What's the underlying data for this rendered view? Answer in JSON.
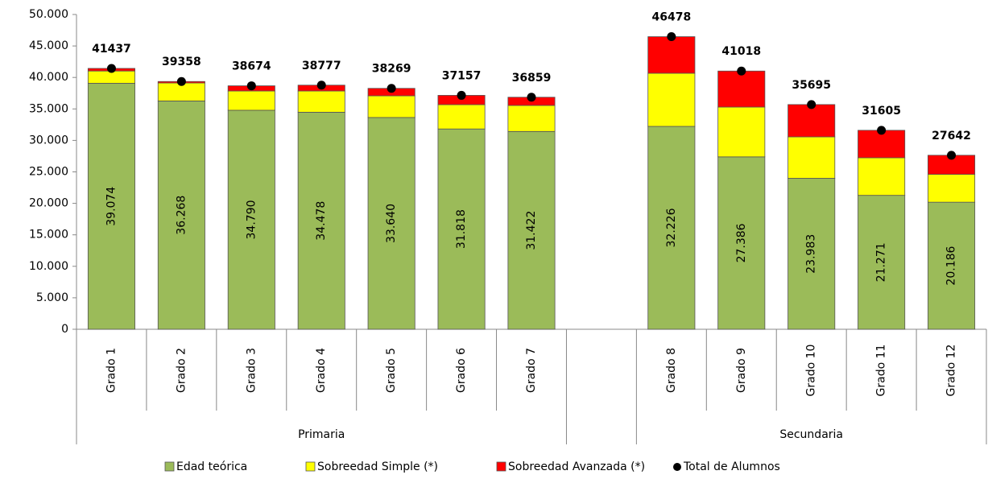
{
  "chart_data": {
    "type": "stacked-bar",
    "categories": [
      "Grado 1",
      "Grado 2",
      "Grado 3",
      "Grado 4",
      "Grado 5",
      "Grado 6",
      "Grado 7",
      null,
      "Grado 8",
      "Grado 9",
      "Grado 10",
      "Grado 11",
      "Grado 12"
    ],
    "groups": [
      {
        "name": "Primaria",
        "span": [
          0,
          6
        ]
      },
      {
        "name": "Secundaria",
        "span": [
          8,
          12
        ]
      }
    ],
    "series": [
      {
        "name": "Edad teórica",
        "color": "#9bbb59",
        "values": [
          39074,
          36268,
          34790,
          34478,
          33640,
          31818,
          31422,
          null,
          32226,
          27386,
          23983,
          21271,
          20186
        ],
        "value_labels": [
          "39.074",
          "36.268",
          "34.790",
          "34.478",
          "33.640",
          "31.818",
          "31.422",
          null,
          "32.226",
          "27.386",
          "23.983",
          "21.271",
          "20.186"
        ]
      },
      {
        "name": "Sobreedad Simple (*)",
        "color": "#ffff00",
        "values": [
          1950,
          2850,
          3060,
          3370,
          3440,
          3860,
          4130,
          null,
          8440,
          7910,
          6580,
          5970,
          4420
        ]
      },
      {
        "name": "Sobreedad Avanzada (*)",
        "color": "#ff0000",
        "values": [
          413,
          240,
          824,
          929,
          1189,
          1479,
          1307,
          null,
          5812,
          5722,
          5132,
          4364,
          3036
        ]
      }
    ],
    "total": {
      "name": "Total de Alumnos",
      "color": "#000000",
      "values": [
        41437,
        39358,
        38674,
        38777,
        38269,
        37157,
        36859,
        null,
        46478,
        41018,
        35695,
        31605,
        27642
      ]
    },
    "ylim": [
      0,
      50000
    ],
    "yticks": [
      0,
      {
        "value": 5000,
        "label": "5.000"
      },
      {
        "value": 10000,
        "label": "10.000"
      },
      {
        "value": 15000,
        "label": "15.000"
      },
      {
        "value": 20000,
        "label": "20.000"
      },
      {
        "value": 25000,
        "label": "25.000"
      },
      {
        "value": 30000,
        "label": "30.000"
      },
      {
        "value": 35000,
        "label": "35.000"
      },
      {
        "value": 40000,
        "label": "40.000"
      },
      {
        "value": 45000,
        "label": "45.000"
      },
      {
        "value": 50000,
        "label": "50.000"
      }
    ],
    "legend": "bottom"
  }
}
